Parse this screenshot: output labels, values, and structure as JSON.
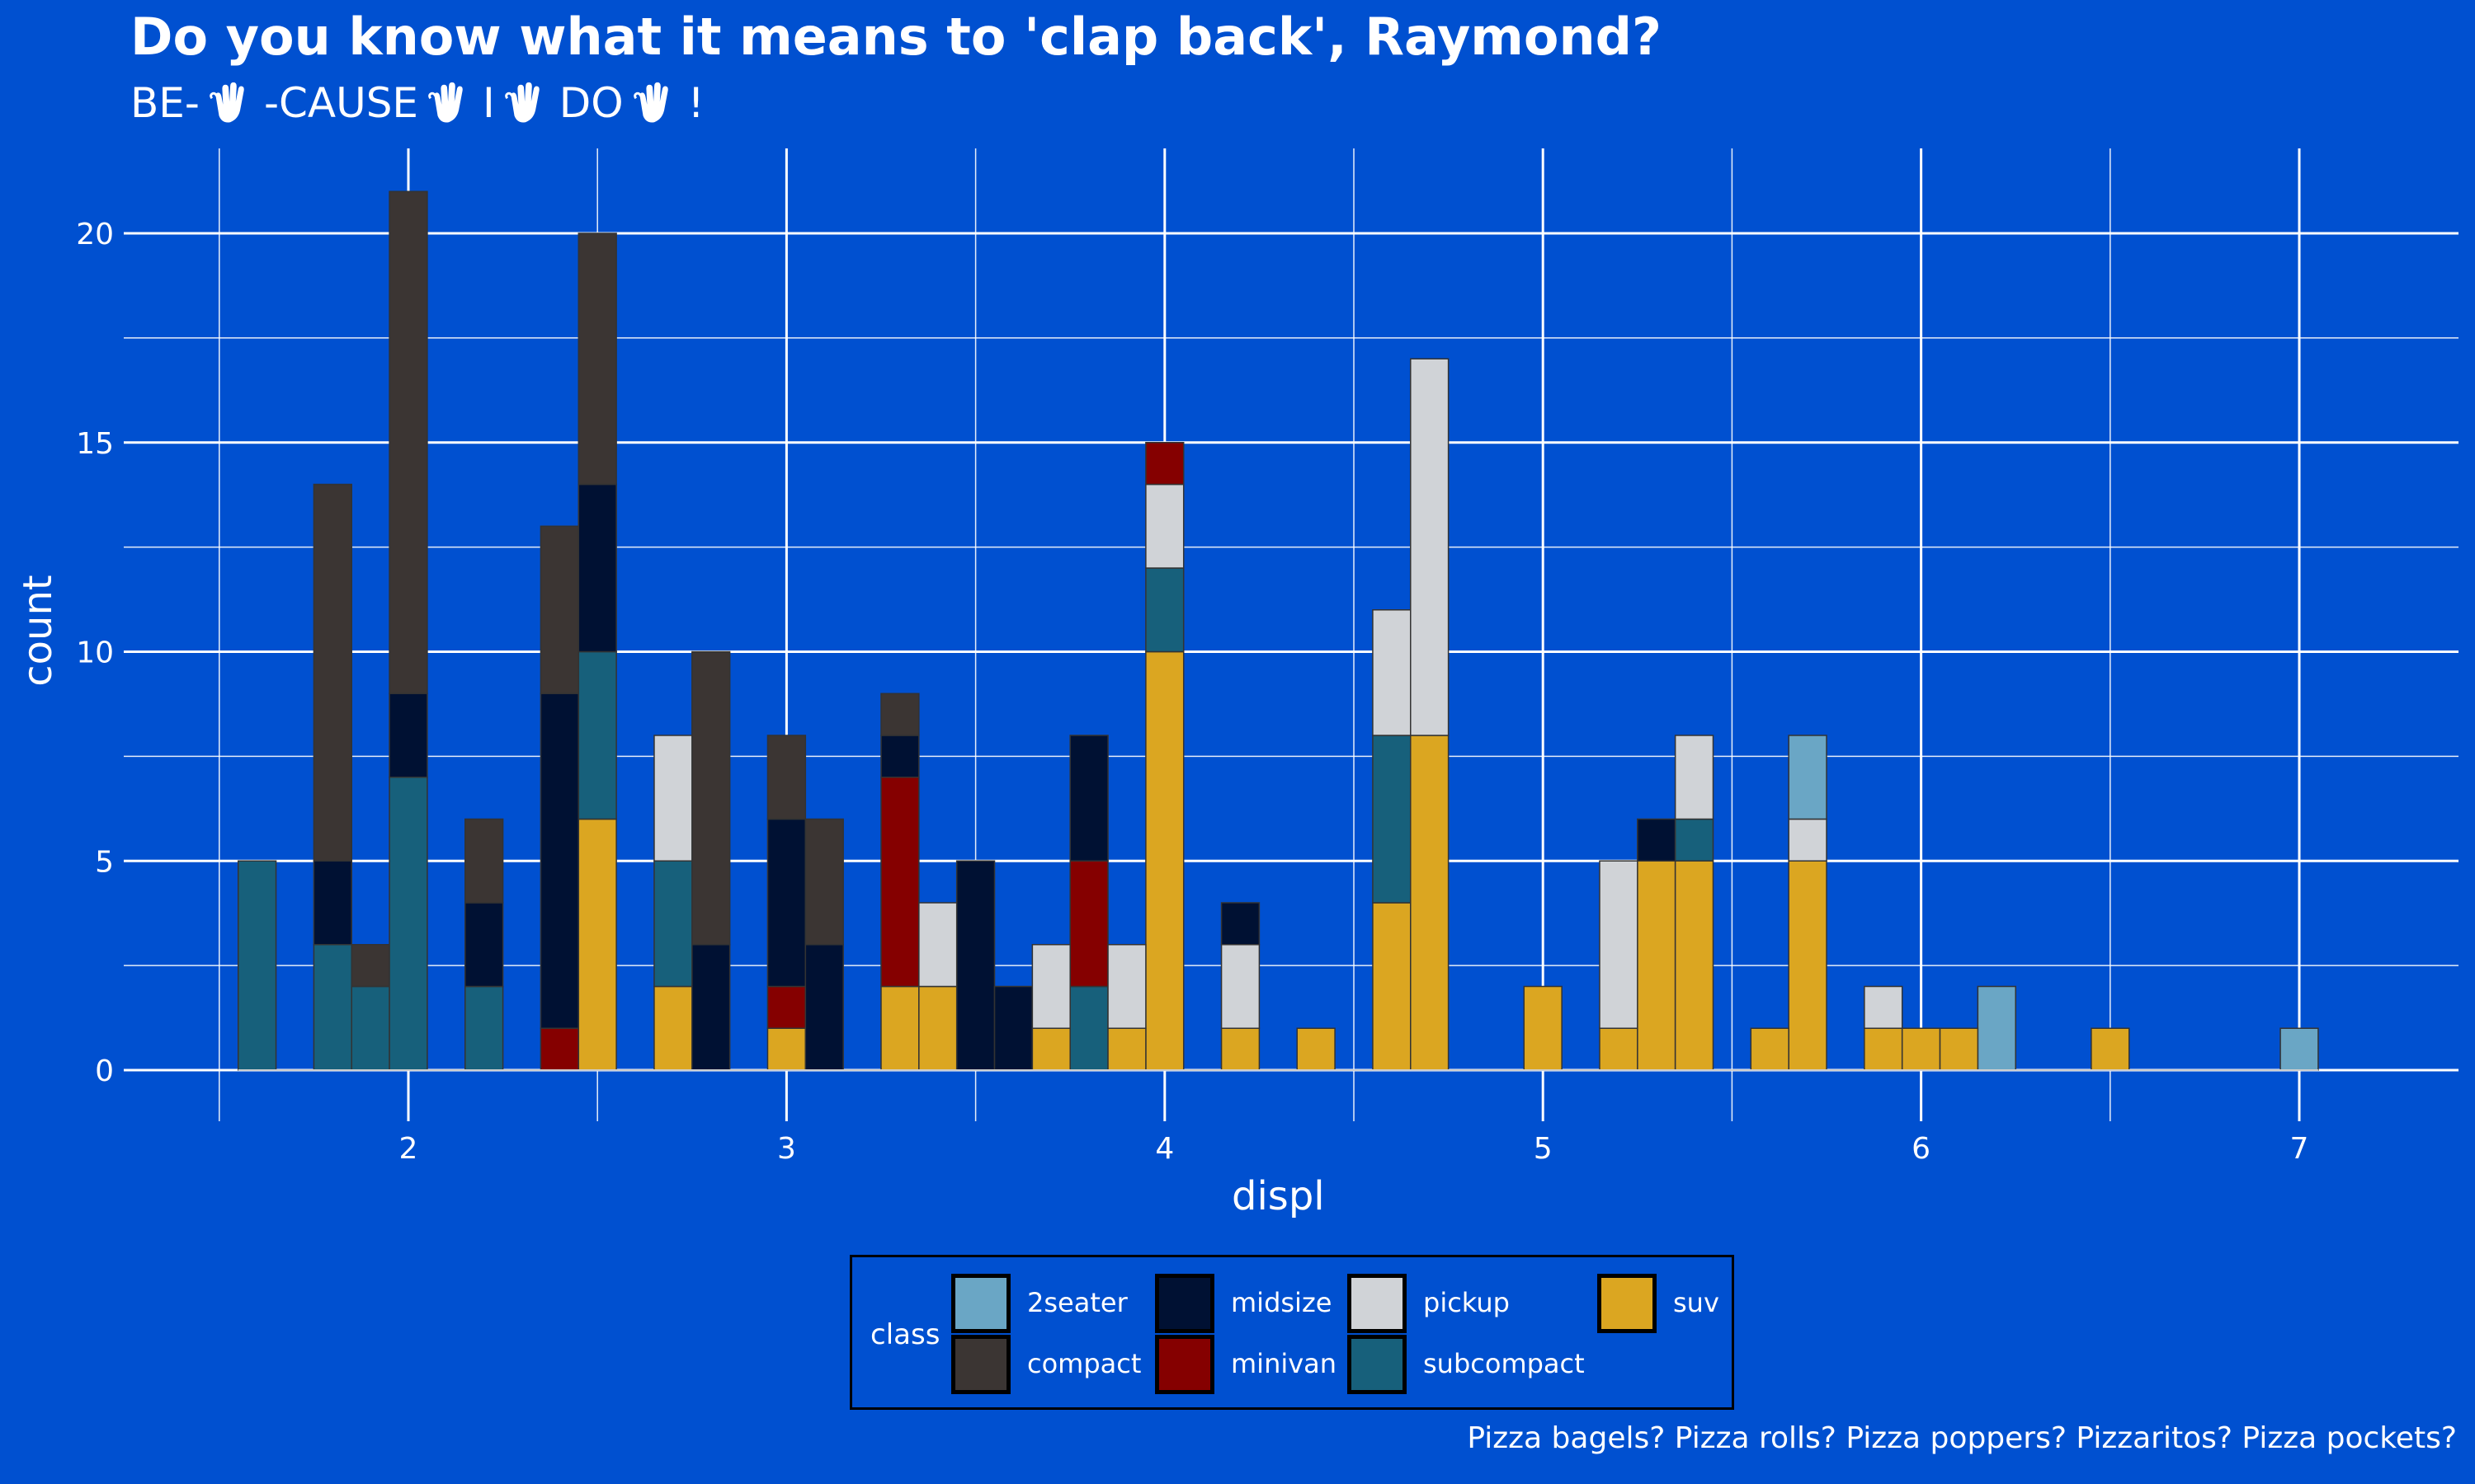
{
  "header": {
    "title": "Do you know what it means to 'clap back', Raymond?",
    "subtitle_parts": [
      "BE-",
      "-CAUSE",
      "I",
      "DO",
      "!"
    ]
  },
  "caption": "Pizza bagels? Pizza rolls? Pizza poppers? Pizzaritos? Pizza pockets?",
  "colors": {
    "background": "#0050d0",
    "grid": "#ffffff",
    "bar_outline": "#333333"
  },
  "legend": {
    "title": "class",
    "items": [
      {
        "label": "2seater",
        "color": "#6aa6c5"
      },
      {
        "label": "compact",
        "color": "#3b3533"
      },
      {
        "label": "midsize",
        "color": "#001133"
      },
      {
        "label": "minivan",
        "color": "#850000"
      },
      {
        "label": "pickup",
        "color": "#d0d3d7"
      },
      {
        "label": "subcompact",
        "color": "#17607b"
      },
      {
        "label": "suv",
        "color": "#dba621"
      }
    ]
  },
  "chart_data": {
    "type": "bar",
    "stacked": true,
    "title": "Do you know what it means to 'clap back', Raymond?",
    "xlabel": "displ",
    "ylabel": "count",
    "xlim": [
      1.3,
      7.3
    ],
    "ylim": [
      0,
      22
    ],
    "x_ticks": [
      2,
      3,
      4,
      5,
      6,
      7
    ],
    "y_ticks": [
      0,
      5,
      10,
      15,
      20
    ],
    "bin_width": 0.1,
    "grid": true,
    "legend_position": "bottom",
    "stack_order": [
      "suv",
      "subcompact",
      "pickup",
      "minivan",
      "midsize",
      "compact",
      "2seater"
    ],
    "series": [
      {
        "name": "2seater",
        "values": [
          [
            5.7,
            2
          ],
          [
            6.2,
            2
          ],
          [
            7.0,
            1
          ]
        ]
      },
      {
        "name": "compact",
        "values": [
          [
            1.8,
            9
          ],
          [
            1.9,
            1
          ],
          [
            2.0,
            12
          ],
          [
            2.2,
            2
          ],
          [
            2.4,
            4
          ],
          [
            2.5,
            6
          ],
          [
            2.8,
            7
          ],
          [
            3.0,
            2
          ],
          [
            3.1,
            3
          ],
          [
            3.3,
            1
          ]
        ]
      },
      {
        "name": "midsize",
        "values": [
          [
            1.8,
            2
          ],
          [
            2.0,
            2
          ],
          [
            2.2,
            2
          ],
          [
            2.4,
            8
          ],
          [
            2.5,
            4
          ],
          [
            2.8,
            3
          ],
          [
            3.0,
            4
          ],
          [
            3.1,
            3
          ],
          [
            3.3,
            1
          ],
          [
            3.5,
            5
          ],
          [
            3.6,
            2
          ],
          [
            3.8,
            3
          ],
          [
            4.2,
            1
          ],
          [
            5.3,
            1
          ]
        ]
      },
      {
        "name": "minivan",
        "values": [
          [
            2.4,
            1
          ],
          [
            3.0,
            1
          ],
          [
            3.3,
            5
          ],
          [
            3.8,
            3
          ],
          [
            4.0,
            1
          ]
        ]
      },
      {
        "name": "pickup",
        "values": [
          [
            2.7,
            3
          ],
          [
            3.4,
            2
          ],
          [
            3.7,
            2
          ],
          [
            3.9,
            2
          ],
          [
            4.0,
            2
          ],
          [
            4.2,
            2
          ],
          [
            4.6,
            3
          ],
          [
            4.7,
            9
          ],
          [
            5.2,
            4
          ],
          [
            5.4,
            2
          ],
          [
            5.7,
            1
          ],
          [
            5.9,
            1
          ]
        ]
      },
      {
        "name": "subcompact",
        "values": [
          [
            1.6,
            5
          ],
          [
            1.8,
            3
          ],
          [
            1.9,
            2
          ],
          [
            2.0,
            7
          ],
          [
            2.2,
            2
          ],
          [
            2.5,
            4
          ],
          [
            2.7,
            3
          ],
          [
            3.8,
            2
          ],
          [
            4.0,
            2
          ],
          [
            4.6,
            4
          ],
          [
            5.4,
            1
          ]
        ]
      },
      {
        "name": "suv",
        "values": [
          [
            2.5,
            6
          ],
          [
            2.7,
            2
          ],
          [
            3.0,
            1
          ],
          [
            3.3,
            2
          ],
          [
            3.4,
            2
          ],
          [
            3.7,
            1
          ],
          [
            3.9,
            1
          ],
          [
            4.0,
            10
          ],
          [
            4.2,
            1
          ],
          [
            4.4,
            1
          ],
          [
            4.6,
            4
          ],
          [
            4.7,
            8
          ],
          [
            5.0,
            2
          ],
          [
            5.2,
            1
          ],
          [
            5.3,
            5
          ],
          [
            5.4,
            5
          ],
          [
            5.6,
            1
          ],
          [
            5.7,
            5
          ],
          [
            5.9,
            1
          ],
          [
            6.0,
            1
          ],
          [
            6.1,
            1
          ],
          [
            6.5,
            1
          ]
        ]
      }
    ]
  }
}
